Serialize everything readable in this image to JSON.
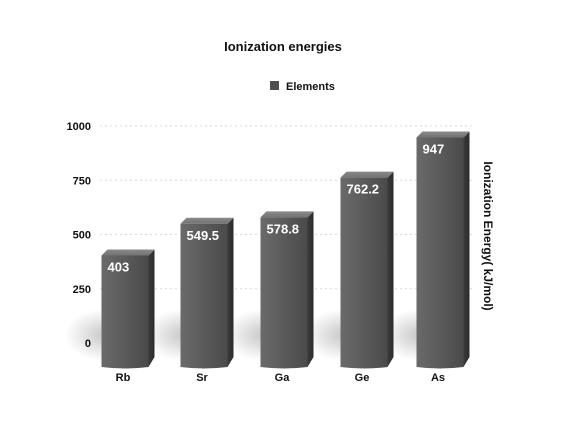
{
  "chart_data": {
    "type": "bar",
    "title": "Ionization energies",
    "xlabel": "",
    "ylabel": "Ionization Energy( kJ/mol)",
    "ylabel_position": "right",
    "legend": {
      "position": "top",
      "entries": [
        "Elements"
      ]
    },
    "categories": [
      "Rb",
      "Sr",
      "Ga",
      "Ge",
      "As"
    ],
    "series": [
      {
        "name": "Elements",
        "values": [
          403,
          549.5,
          578.8,
          762.2,
          947
        ],
        "color": "#5a5a5a"
      }
    ],
    "data_labels": [
      "403",
      "549.5",
      "578.8",
      "762.2",
      "947"
    ],
    "yticks": [
      "0",
      "250",
      "500",
      "750",
      "1000"
    ],
    "ytick_values": [
      0,
      250,
      500,
      750,
      1000
    ],
    "ylim": [
      0,
      1000
    ],
    "grid": true,
    "style": "3d-column"
  }
}
